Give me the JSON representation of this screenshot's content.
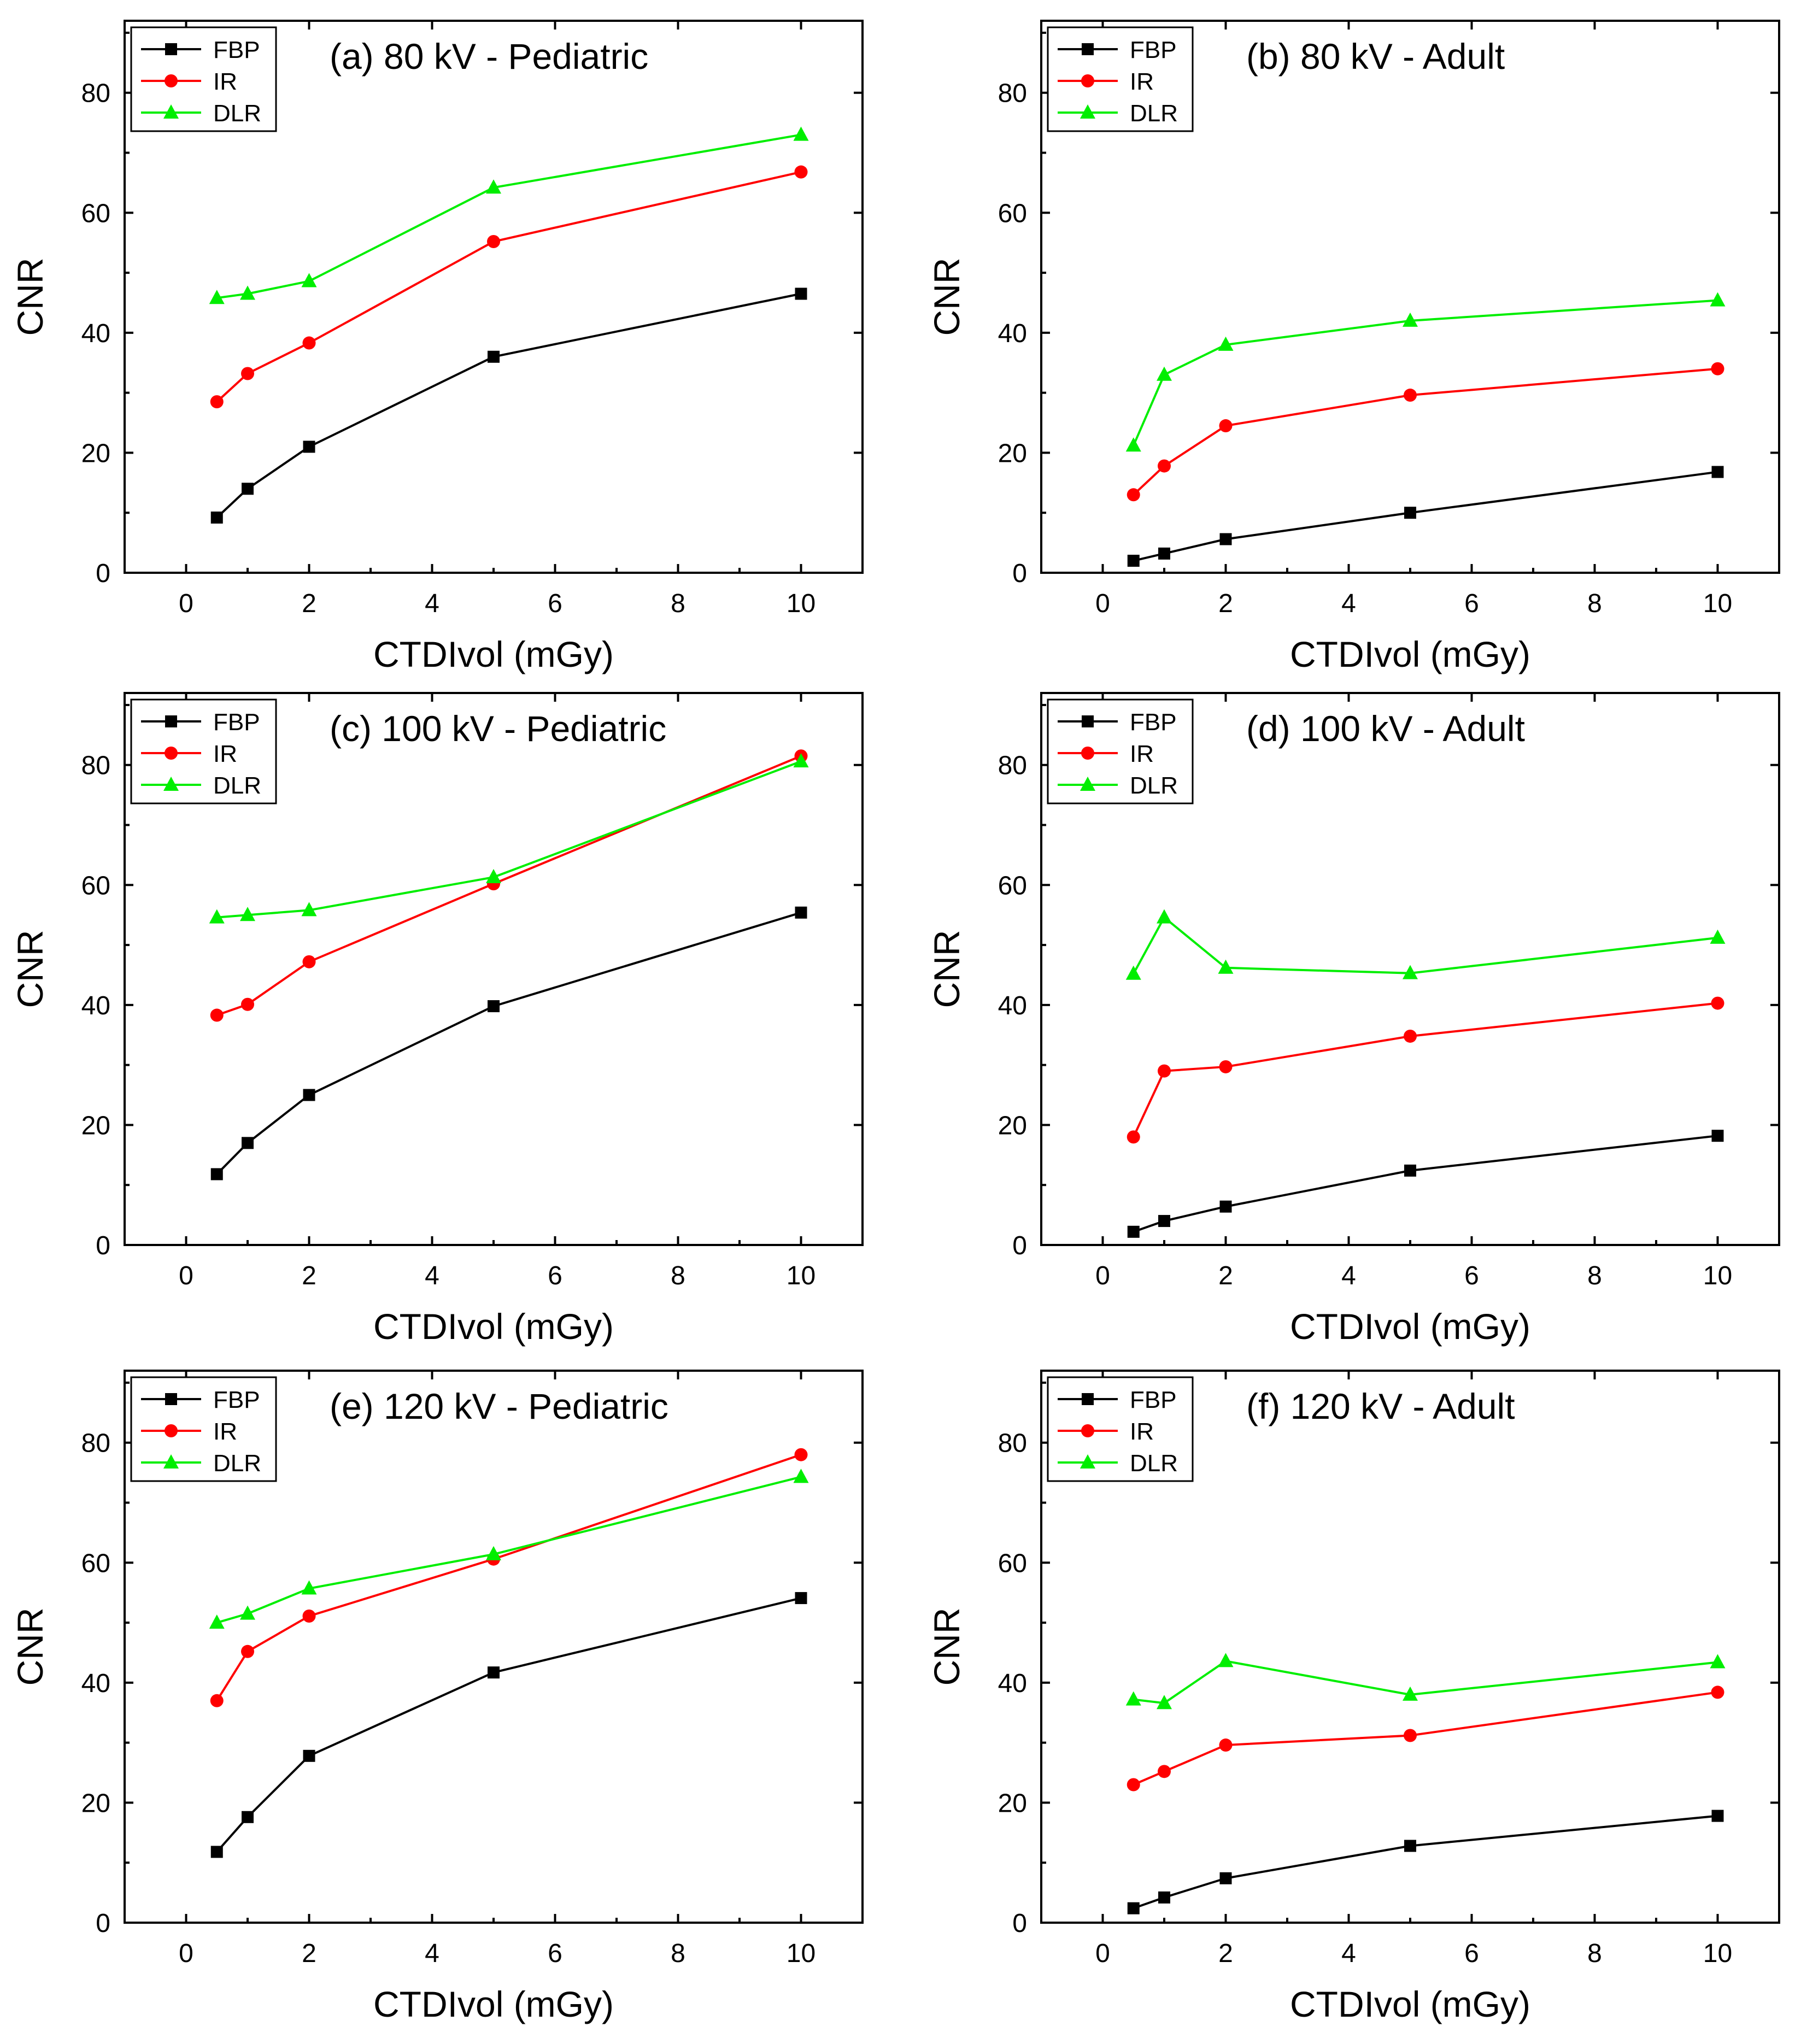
{
  "chart_data": [
    {
      "type": "line",
      "title": "(a) 80 kV - Pediatric",
      "xlabel": "CTDIvol (mGy)",
      "ylabel": "CNR",
      "x": [
        0.5,
        1,
        2,
        5,
        10
      ],
      "xlim": [
        -1,
        11
      ],
      "ylim": [
        0,
        92
      ],
      "xticks": [
        0,
        2,
        4,
        6,
        8,
        10
      ],
      "yticks": [
        0,
        20,
        40,
        60,
        80
      ],
      "legend_position": "top-left",
      "series": [
        {
          "name": "FBP",
          "color": "#000000",
          "marker": "square",
          "values": [
            9.2,
            14,
            21,
            36,
            46.5
          ]
        },
        {
          "name": "IR",
          "color": "#ff0000",
          "marker": "circle",
          "values": [
            28.5,
            33.2,
            38.3,
            55.2,
            66.8
          ]
        },
        {
          "name": "DLR",
          "color": "#00ee00",
          "marker": "triangle",
          "values": [
            45.8,
            46.5,
            48.6,
            64.2,
            73
          ]
        }
      ]
    },
    {
      "type": "line",
      "title": "(b) 80 kV - Adult",
      "xlabel": "CTDIvol (mGy)",
      "ylabel": "CNR",
      "x": [
        0.5,
        1,
        2,
        5,
        10
      ],
      "xlim": [
        -1,
        11
      ],
      "ylim": [
        0,
        92
      ],
      "xticks": [
        0,
        2,
        4,
        6,
        8,
        10
      ],
      "yticks": [
        0,
        20,
        40,
        60,
        80
      ],
      "legend_position": "top-left",
      "series": [
        {
          "name": "FBP",
          "color": "#000000",
          "marker": "square",
          "values": [
            2,
            3.2,
            5.6,
            10,
            16.8
          ]
        },
        {
          "name": "IR",
          "color": "#ff0000",
          "marker": "circle",
          "values": [
            13,
            17.8,
            24.5,
            29.6,
            34
          ]
        },
        {
          "name": "DLR",
          "color": "#00ee00",
          "marker": "triangle",
          "values": [
            21.2,
            33,
            38,
            42,
            45.4
          ]
        }
      ]
    },
    {
      "type": "line",
      "title": "(c) 100 kV - Pediatric",
      "xlabel": "CTDIvol (mGy)",
      "ylabel": "CNR",
      "x": [
        0.5,
        1,
        2,
        5,
        10
      ],
      "xlim": [
        -1,
        11
      ],
      "ylim": [
        0,
        92
      ],
      "xticks": [
        0,
        2,
        4,
        6,
        8,
        10
      ],
      "yticks": [
        0,
        20,
        40,
        60,
        80
      ],
      "legend_position": "top-left",
      "series": [
        {
          "name": "FBP",
          "color": "#000000",
          "marker": "square",
          "values": [
            11.8,
            17,
            25,
            39.8,
            55.4
          ]
        },
        {
          "name": "IR",
          "color": "#ff0000",
          "marker": "circle",
          "values": [
            38.3,
            40.1,
            47.2,
            60.2,
            81.5
          ]
        },
        {
          "name": "DLR",
          "color": "#00ee00",
          "marker": "triangle",
          "values": [
            54.6,
            55,
            55.8,
            61.3,
            80.6
          ]
        }
      ]
    },
    {
      "type": "line",
      "title": "(d) 100 kV - Adult",
      "xlabel": "CTDIvol (mGy)",
      "ylabel": "CNR",
      "x": [
        0.5,
        1,
        2,
        5,
        10
      ],
      "xlim": [
        -1,
        11
      ],
      "ylim": [
        0,
        92
      ],
      "xticks": [
        0,
        2,
        4,
        6,
        8,
        10
      ],
      "yticks": [
        0,
        20,
        40,
        60,
        80
      ],
      "legend_position": "top-left",
      "series": [
        {
          "name": "FBP",
          "color": "#000000",
          "marker": "square",
          "values": [
            2.2,
            4,
            6.4,
            12.4,
            18.2
          ]
        },
        {
          "name": "IR",
          "color": "#ff0000",
          "marker": "circle",
          "values": [
            18,
            29,
            29.7,
            34.8,
            40.3
          ]
        },
        {
          "name": "DLR",
          "color": "#00ee00",
          "marker": "triangle",
          "values": [
            45.2,
            54.6,
            46.2,
            45.3,
            51.2
          ]
        }
      ]
    },
    {
      "type": "line",
      "title": "(e) 120 kV - Pediatric",
      "xlabel": "CTDIvol (mGy)",
      "ylabel": "CNR",
      "x": [
        0.5,
        1,
        2,
        5,
        10
      ],
      "xlim": [
        -1,
        11
      ],
      "ylim": [
        0,
        92
      ],
      "xticks": [
        0,
        2,
        4,
        6,
        8,
        10
      ],
      "yticks": [
        0,
        20,
        40,
        60,
        80
      ],
      "legend_position": "top-left",
      "series": [
        {
          "name": "FBP",
          "color": "#000000",
          "marker": "square",
          "values": [
            11.8,
            17.6,
            27.8,
            41.7,
            54.1
          ]
        },
        {
          "name": "IR",
          "color": "#ff0000",
          "marker": "circle",
          "values": [
            37,
            45.2,
            51.1,
            60.6,
            78
          ]
        },
        {
          "name": "DLR",
          "color": "#00ee00",
          "marker": "triangle",
          "values": [
            50,
            51.5,
            55.7,
            61.4,
            74.3
          ]
        }
      ]
    },
    {
      "type": "line",
      "title": "(f) 120 kV - Adult",
      "xlabel": "CTDIvol (mGy)",
      "ylabel": "CNR",
      "x": [
        0.5,
        1,
        2,
        5,
        10
      ],
      "xlim": [
        -1,
        11
      ],
      "ylim": [
        0,
        92
      ],
      "xticks": [
        0,
        2,
        4,
        6,
        8,
        10
      ],
      "yticks": [
        0,
        20,
        40,
        60,
        80
      ],
      "legend_position": "top-left",
      "series": [
        {
          "name": "FBP",
          "color": "#000000",
          "marker": "square",
          "values": [
            2.4,
            4.2,
            7.4,
            12.8,
            17.8
          ]
        },
        {
          "name": "IR",
          "color": "#ff0000",
          "marker": "circle",
          "values": [
            23,
            25.2,
            29.6,
            31.2,
            38.4
          ]
        },
        {
          "name": "DLR",
          "color": "#00ee00",
          "marker": "triangle",
          "values": [
            37.2,
            36.6,
            43.6,
            38,
            43.4
          ]
        }
      ]
    }
  ]
}
